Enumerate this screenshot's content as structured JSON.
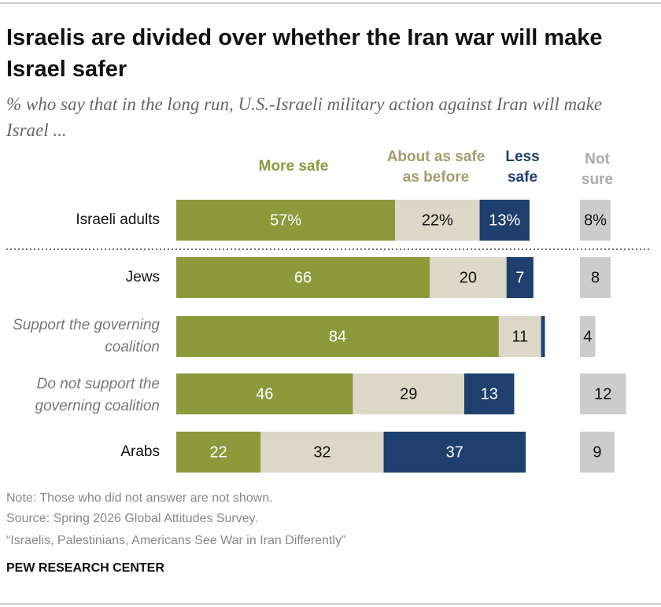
{
  "chart_data": {
    "type": "stacked_bar",
    "title": "Israelis are divided over whether the Iran war will make Israel safer",
    "subtitle": "% who say that in the long run, U.S.-Israeli military action against Iran will make Israel ...",
    "categories": [
      "Israeli adults",
      "Jews",
      "Support the governing coalition",
      "Do not support the governing coalition",
      "Arabs"
    ],
    "series": [
      {
        "name": "More safe",
        "color": "#8c9a3c",
        "values": [
          57,
          66,
          84,
          46,
          22
        ],
        "value_labels": [
          "57%",
          "66",
          "84",
          "46",
          "22"
        ]
      },
      {
        "name": "About as safe as before",
        "color": "#dcd8c7",
        "values": [
          22,
          20,
          11,
          29,
          32
        ],
        "value_labels": [
          "22%",
          "20",
          "11",
          "29",
          "32"
        ]
      },
      {
        "name": "Less safe",
        "color": "#1f3f6e",
        "values": [
          13,
          7,
          1,
          13,
          37
        ],
        "value_labels": [
          "13%",
          "7",
          null,
          "13",
          "37"
        ]
      },
      {
        "name": "Not sure",
        "color": "#cccccc",
        "values": [
          8,
          8,
          4,
          12,
          9
        ],
        "value_labels": [
          "8%",
          "8",
          "4",
          "12",
          "9"
        ]
      }
    ],
    "notes": [
      "Note: Those who did not answer are not shown.",
      "Source: Spring 2026 Global Attitudes Survey.",
      "“Israelis, Palestinians, Americans See War in Iran Differently”"
    ],
    "source": "PEW RESEARCH CENTER"
  }
}
